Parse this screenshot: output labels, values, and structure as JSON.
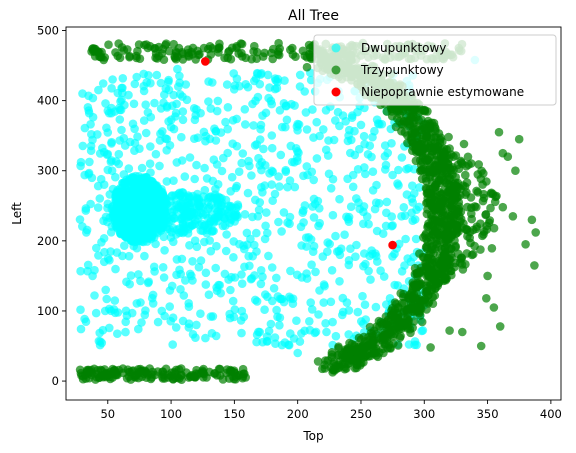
{
  "chart_data": {
    "type": "scatter",
    "title": "All Tree",
    "xlabel": "Top",
    "ylabel": "Left",
    "xlim": [
      17,
      408
    ],
    "ylim": [
      -27,
      505
    ],
    "xticks": [
      50,
      100,
      150,
      200,
      250,
      300,
      350,
      400
    ],
    "yticks": [
      0,
      100,
      200,
      300,
      400,
      500
    ],
    "grid": false,
    "legend_position": "top-right",
    "series": [
      {
        "name": "Dwupunktowy",
        "color": "#00ffff",
        "alpha": 0.65,
        "regions": [
          {
            "shape": "disc",
            "cx": 75,
            "cy": 245,
            "rx": 22,
            "ry": 48,
            "count": 700
          },
          {
            "shape": "disc",
            "cx": 115,
            "cy": 240,
            "rx": 40,
            "ry": 30,
            "count": 200
          },
          {
            "shape": "box",
            "x": [
              28,
              300
            ],
            "y": [
              50,
              440
            ],
            "count": 900
          }
        ],
        "points": [
          [
            30,
            410
          ],
          [
            37,
            352
          ],
          [
            33,
            212
          ],
          [
            43,
            57
          ],
          [
            105,
            445
          ],
          [
            200,
            40
          ],
          [
            270,
            240
          ],
          [
            275,
            222
          ],
          [
            282,
            235
          ],
          [
            290,
            240
          ],
          [
            340,
            458
          ]
        ]
      },
      {
        "name": "Trzypunktowy",
        "color": "#008000",
        "alpha": 0.7,
        "regions": [
          {
            "shape": "band",
            "x": [
              27,
              160
            ],
            "y": [
              2,
              18
            ],
            "count": 160
          },
          {
            "shape": "band",
            "x": [
              37,
              330
            ],
            "y": [
              458,
              482
            ],
            "count": 220
          },
          {
            "shape": "arc",
            "center": [
              190,
              240
            ],
            "rx": 125,
            "ry": 225,
            "angle_deg": [
              -73,
              78
            ],
            "jitter": 13,
            "count": 1100
          },
          {
            "shape": "arc",
            "center": [
              190,
              240
            ],
            "rx": 150,
            "ry": 150,
            "angle_deg": [
              -35,
              45
            ],
            "jitter": 18,
            "count": 150
          }
        ],
        "points": [
          [
            375,
            345
          ],
          [
            385,
            230
          ],
          [
            388,
            212
          ],
          [
            380,
            195
          ],
          [
            387,
            165
          ],
          [
            370,
            235
          ],
          [
            362,
            325
          ],
          [
            345,
            50
          ],
          [
            360,
            78
          ],
          [
            372,
            300
          ],
          [
            355,
            105
          ],
          [
            350,
            150
          ],
          [
            349,
            118
          ],
          [
            330,
            70
          ],
          [
            320,
            72
          ],
          [
            305,
            48
          ],
          [
            362,
            248
          ],
          [
            359,
            355
          ],
          [
            366,
            320
          ]
        ]
      },
      {
        "name": "Niepoprawnie estymowane",
        "color": "#ff0000",
        "alpha": 1.0,
        "points": [
          [
            127,
            456
          ],
          [
            275,
            194
          ]
        ]
      }
    ]
  }
}
